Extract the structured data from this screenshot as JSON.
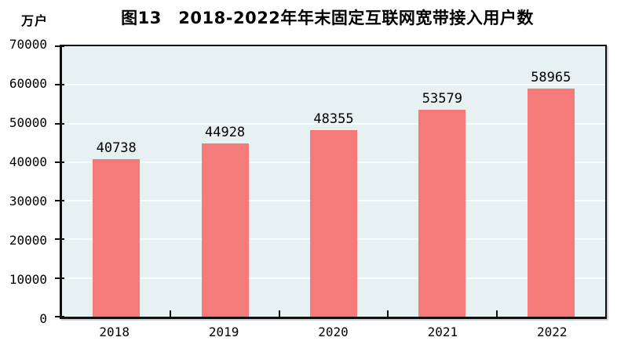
{
  "title": "图13　2018-2022年年末固定互联网宽带接入用户数",
  "unit_label": "万户",
  "chart_data": {
    "type": "bar",
    "title": "图13　2018-2022年年末固定互联网宽带接入用户数",
    "ylabel": "万户",
    "categories": [
      "2018",
      "2019",
      "2020",
      "2021",
      "2022"
    ],
    "values": [
      40738,
      44928,
      48355,
      53579,
      58965
    ],
    "data_labels": [
      "40738",
      "44928",
      "48355",
      "53579",
      "58965"
    ],
    "ylim": [
      0,
      70000
    ],
    "yticks": [
      0,
      10000,
      20000,
      30000,
      40000,
      50000,
      60000,
      70000
    ],
    "grid": true,
    "legend": "none",
    "colors": {
      "bar": "#f57b7b",
      "plot_bg": "#e8f1f2",
      "gridline": "#fafdfd",
      "axis": "#101010",
      "text": "#000000"
    }
  }
}
